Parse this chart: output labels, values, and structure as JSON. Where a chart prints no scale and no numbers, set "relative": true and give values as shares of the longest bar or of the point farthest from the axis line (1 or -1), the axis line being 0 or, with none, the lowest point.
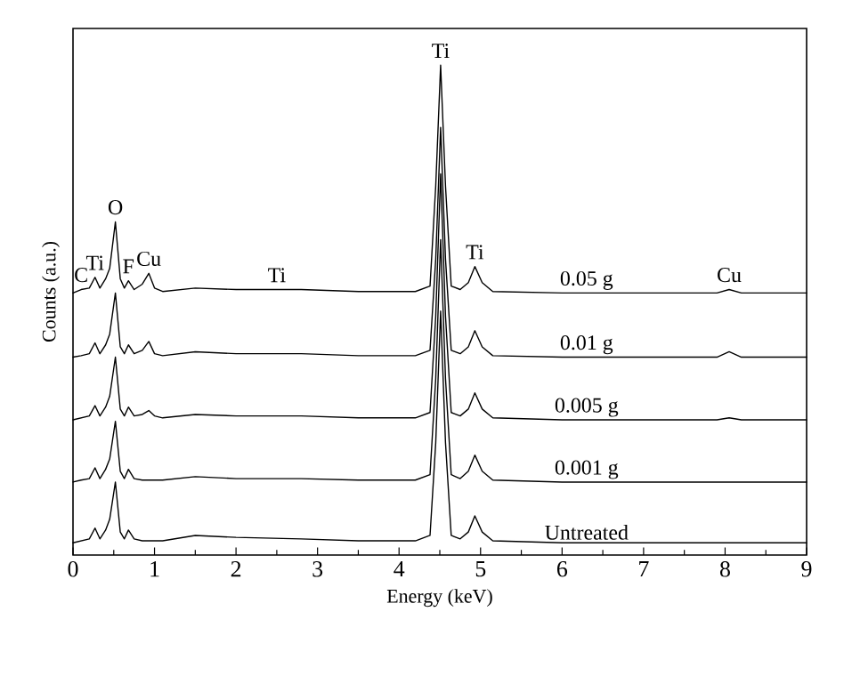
{
  "chart_data": {
    "type": "line",
    "relative": true,
    "xlabel": "Energy (keV)",
    "ylabel": "Counts (a.u.)",
    "xlim": [
      0,
      9
    ],
    "xticks": [
      0,
      1,
      2,
      3,
      4,
      5,
      6,
      7,
      8,
      9
    ],
    "tick_labels": "x",
    "grid": false,
    "marker": "none",
    "line_style": "solid",
    "x": [
      0.0,
      0.1,
      0.2,
      0.27,
      0.33,
      0.4,
      0.45,
      0.52,
      0.58,
      0.63,
      0.68,
      0.75,
      0.85,
      0.93,
      1.0,
      1.1,
      1.5,
      2.0,
      2.8,
      3.5,
      4.2,
      4.38,
      4.45,
      4.51,
      4.57,
      4.64,
      4.75,
      4.85,
      4.93,
      5.02,
      5.15,
      6.0,
      7.0,
      7.9,
      8.05,
      8.2,
      9.0
    ],
    "series": [
      {
        "name": "0.05 g",
        "color": "#000000",
        "values": [
          0.535,
          0.542,
          0.545,
          0.567,
          0.545,
          0.564,
          0.585,
          0.68,
          0.564,
          0.545,
          0.56,
          0.542,
          0.553,
          0.575,
          0.545,
          0.538,
          0.545,
          0.542,
          0.542,
          0.538,
          0.538,
          0.549,
          0.753,
          1.0,
          0.753,
          0.549,
          0.542,
          0.556,
          0.589,
          0.556,
          0.538,
          0.535,
          0.535,
          0.535,
          0.542,
          0.535,
          0.535
        ]
      },
      {
        "name": "0.01 g",
        "color": "#000000",
        "values": [
          0.404,
          0.407,
          0.411,
          0.433,
          0.411,
          0.429,
          0.451,
          0.535,
          0.425,
          0.411,
          0.429,
          0.411,
          0.418,
          0.436,
          0.411,
          0.407,
          0.415,
          0.411,
          0.411,
          0.407,
          0.407,
          0.418,
          0.604,
          0.873,
          0.604,
          0.418,
          0.411,
          0.425,
          0.458,
          0.425,
          0.407,
          0.404,
          0.404,
          0.404,
          0.415,
          0.404,
          0.404
        ]
      },
      {
        "name": "0.005 g",
        "color": "#000000",
        "values": [
          0.276,
          0.28,
          0.284,
          0.305,
          0.284,
          0.302,
          0.324,
          0.404,
          0.298,
          0.284,
          0.302,
          0.284,
          0.287,
          0.295,
          0.284,
          0.28,
          0.287,
          0.284,
          0.284,
          0.28,
          0.28,
          0.291,
          0.487,
          0.778,
          0.487,
          0.291,
          0.284,
          0.298,
          0.331,
          0.298,
          0.28,
          0.276,
          0.276,
          0.276,
          0.28,
          0.276,
          0.276
        ]
      },
      {
        "name": "0.001 g",
        "color": "#000000",
        "values": [
          0.149,
          0.153,
          0.156,
          0.178,
          0.156,
          0.175,
          0.196,
          0.273,
          0.171,
          0.156,
          0.175,
          0.156,
          0.153,
          0.153,
          0.153,
          0.153,
          0.16,
          0.156,
          0.156,
          0.153,
          0.153,
          0.164,
          0.36,
          0.644,
          0.36,
          0.164,
          0.156,
          0.171,
          0.204,
          0.171,
          0.153,
          0.149,
          0.149,
          0.149,
          0.149,
          0.149,
          0.149
        ]
      },
      {
        "name": "Untreated",
        "color": "#000000",
        "values": [
          0.025,
          0.029,
          0.033,
          0.055,
          0.033,
          0.051,
          0.073,
          0.149,
          0.047,
          0.033,
          0.051,
          0.033,
          0.029,
          0.029,
          0.029,
          0.029,
          0.04,
          0.036,
          0.033,
          0.029,
          0.029,
          0.04,
          0.229,
          0.498,
          0.229,
          0.04,
          0.033,
          0.047,
          0.08,
          0.047,
          0.029,
          0.025,
          0.025,
          0.025,
          0.025,
          0.025,
          0.025
        ]
      }
    ],
    "annotations": [
      {
        "text": "C",
        "x": 0.1,
        "y": 0.542
      },
      {
        "text": "Ti",
        "x": 0.27,
        "y": 0.567
      },
      {
        "text": "O",
        "x": 0.52,
        "y": 0.68
      },
      {
        "text": "F",
        "x": 0.68,
        "y": 0.56
      },
      {
        "text": "Cu",
        "x": 0.93,
        "y": 0.575
      },
      {
        "text": "Ti",
        "x": 2.5,
        "y": 0.542
      },
      {
        "text": "Ti",
        "x": 4.51,
        "y": 1.0
      },
      {
        "text": "Ti",
        "x": 4.93,
        "y": 0.589
      },
      {
        "text": "Cu",
        "x": 8.05,
        "y": 0.542
      }
    ]
  }
}
